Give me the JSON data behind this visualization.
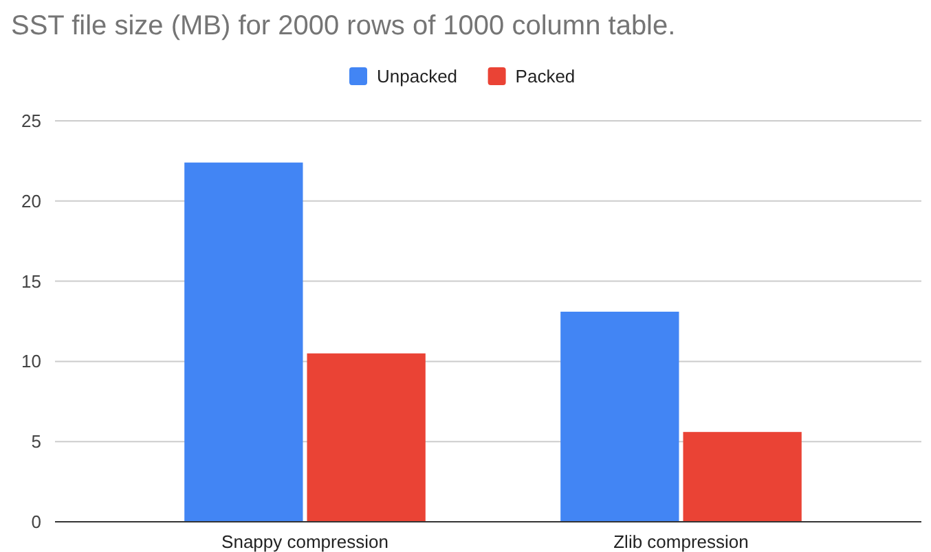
{
  "chart_data": {
    "type": "bar",
    "title": "SST file size (MB) for 2000 rows of 1000 column table.",
    "categories": [
      "Snappy compression",
      "Zlib compression"
    ],
    "series": [
      {
        "name": "Unpacked",
        "color": "#4285f4",
        "values": [
          22.4,
          13.1
        ]
      },
      {
        "name": "Packed",
        "color": "#ea4335",
        "values": [
          10.5,
          5.6
        ]
      }
    ],
    "ylim": [
      0,
      25
    ],
    "yticks": [
      0,
      5,
      10,
      15,
      20,
      25
    ],
    "grid": "y",
    "legend": "top"
  }
}
